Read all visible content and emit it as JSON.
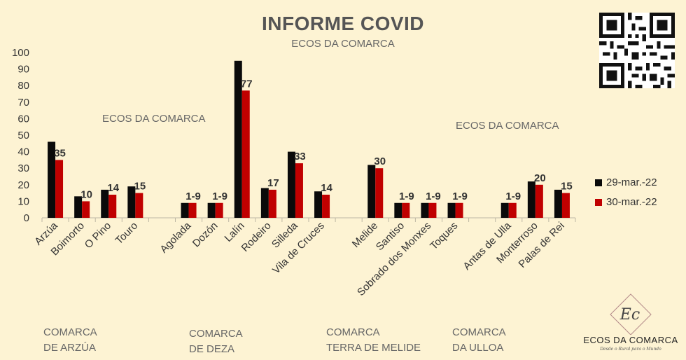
{
  "header": {
    "title": "INFORME COVID",
    "subtitle": "ECOS DA COMARCA"
  },
  "watermarks": [
    "ECOS DA COMARCA",
    "ECOS DA COMARCA"
  ],
  "groups": [
    {
      "line1": "COMARCA",
      "line2": "DE ARZÚA"
    },
    {
      "line1": "COMARCA",
      "line2": "DE DEZA"
    },
    {
      "line1": "COMARCA",
      "line2": "TERRA DE MELIDE"
    },
    {
      "line1": "COMARCA",
      "line2": "DA ULLOA"
    }
  ],
  "logo": {
    "brand": "ECOS DA COMARCA",
    "tagline": "Desde o Rural para o Mundo",
    "mark": "Ec"
  },
  "qr_icon": "qr-code-icon",
  "colors": {
    "background": "#fdf3d3",
    "series1": "#0a0a0a",
    "series2": "#c00000"
  },
  "chart_data": {
    "type": "bar",
    "ylim": [
      0,
      100
    ],
    "yticks": [
      0,
      10,
      20,
      30,
      40,
      50,
      60,
      70,
      80,
      90,
      100
    ],
    "categories": [
      "Arzúa",
      "Boimorto",
      "O Pino",
      "Touro",
      "",
      "Agolada",
      "Dozón",
      "Lalín",
      "Rodeiro",
      "Silleda",
      "Vila de Cruces",
      "",
      "Melide",
      "Santiso",
      "Sobrado dos Monxes",
      "Toques",
      "",
      "Antas de Ulla",
      "Monterroso",
      "Palas de Rei"
    ],
    "series": [
      {
        "name": "29-mar.-22",
        "values": [
          46,
          13,
          17,
          19,
          null,
          9,
          9,
          95,
          18,
          40,
          16,
          null,
          32,
          9,
          9,
          9,
          null,
          9,
          22,
          17
        ]
      },
      {
        "name": "30-mar.-22",
        "values": [
          35,
          10,
          14,
          15,
          null,
          9,
          9,
          77,
          17,
          33,
          14,
          null,
          30,
          9,
          9,
          9,
          null,
          9,
          20,
          15
        ]
      }
    ],
    "data_labels": [
      "35",
      "10",
      "14",
      "15",
      "",
      "1-9",
      "1-9",
      "77",
      "17",
      "33",
      "14",
      "",
      "30",
      "1-9",
      "1-9",
      "1-9",
      "",
      "1-9",
      "20",
      "15"
    ],
    "legend_position": "right",
    "grid": false
  }
}
